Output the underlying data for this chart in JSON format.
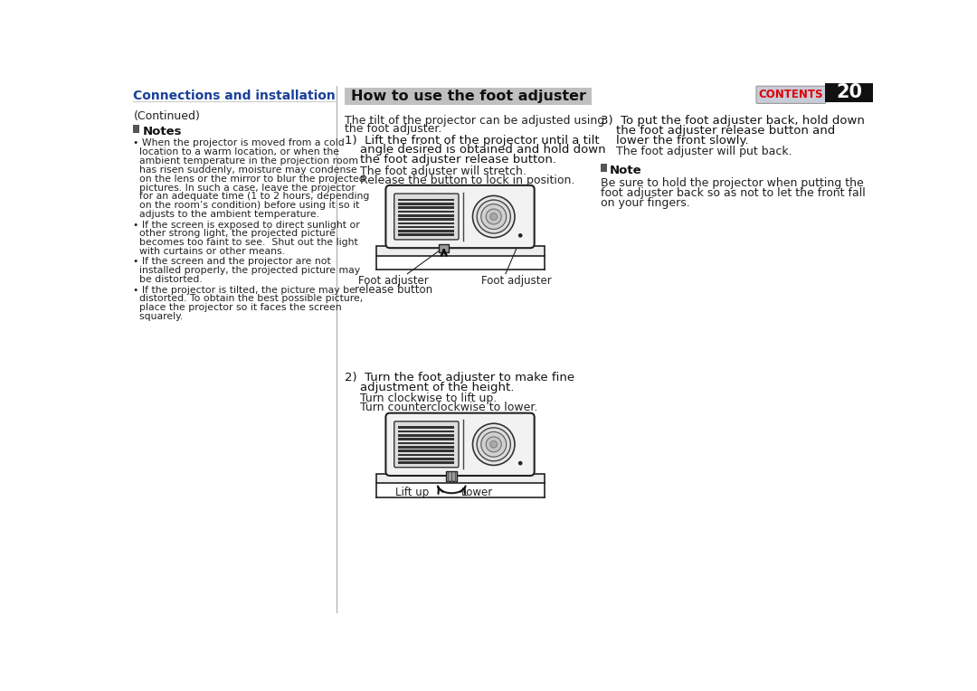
{
  "background_color": "#ffffff",
  "page_number": "20",
  "contents_button_color": "#c8ccd8",
  "contents_text_color": "#dd0000",
  "header_title": "Connections and installation",
  "header_color": "#1a4099",
  "continued_text": "(Continued)",
  "notes_title": "Notes",
  "section_title": "How to use the foot adjuster",
  "section_title_bg": "#c0c0c0",
  "intro_line1": "The tilt of the projector can be adjusted using",
  "intro_line2": "the foot adjuster.",
  "step1_lines": [
    "1)  Lift the front of the projector until a tilt",
    "    angle desired is obtained and hold down",
    "    the foot adjuster release button."
  ],
  "step1_note1": "The foot adjuster will stretch.",
  "step1_note2": "Release the button to lock in position.",
  "step2_lines": [
    "2)  Turn the foot adjuster to make fine",
    "    adjustment of the height."
  ],
  "step2_note1": "Turn clockwise to lift up.",
  "step2_note2": "Turn counterclockwise to lower.",
  "step3_lines": [
    "3)  To put the foot adjuster back, hold down",
    "    the foot adjuster release button and",
    "    lower the front slowly."
  ],
  "step3_note1": "The foot adjuster will put back.",
  "right_note_title": "Note",
  "right_note_lines": [
    "Be sure to hold the projector when putting the",
    "foot adjuster back so as not to let the front fall",
    "on your fingers."
  ],
  "label_foot_release": "Foot adjuster",
  "label_foot_release2": "release button",
  "label_foot_adjuster": "Foot adjuster",
  "label_lift_up": "Lift up",
  "label_lower": "Lower",
  "note1_lines": [
    "• When the projector is moved from a cold",
    "  location to a warm location, or when the",
    "  ambient temperature in the projection room",
    "  has risen suddenly, moisture may condense",
    "  on the lens or the mirror to blur the projected",
    "  pictures. In such a case, leave the projector",
    "  for an adequate time (1 to 2 hours, depending",
    "  on the room’s condition) before using it so it",
    "  adjusts to the ambient temperature."
  ],
  "note2_lines": [
    "• If the screen is exposed to direct sunlight or",
    "  other strong light, the projected picture",
    "  becomes too faint to see.  Shut out the light",
    "  with curtains or other means."
  ],
  "note3_lines": [
    "• If the screen and the projector are not",
    "  installed properly, the projected picture may",
    "  be distorted."
  ],
  "note4_lines": [
    "• If the projector is tilted, the picture may be",
    "  distorted. To obtain the best possible picture,",
    "  place the projector so it faces the screen",
    "  squarely."
  ]
}
